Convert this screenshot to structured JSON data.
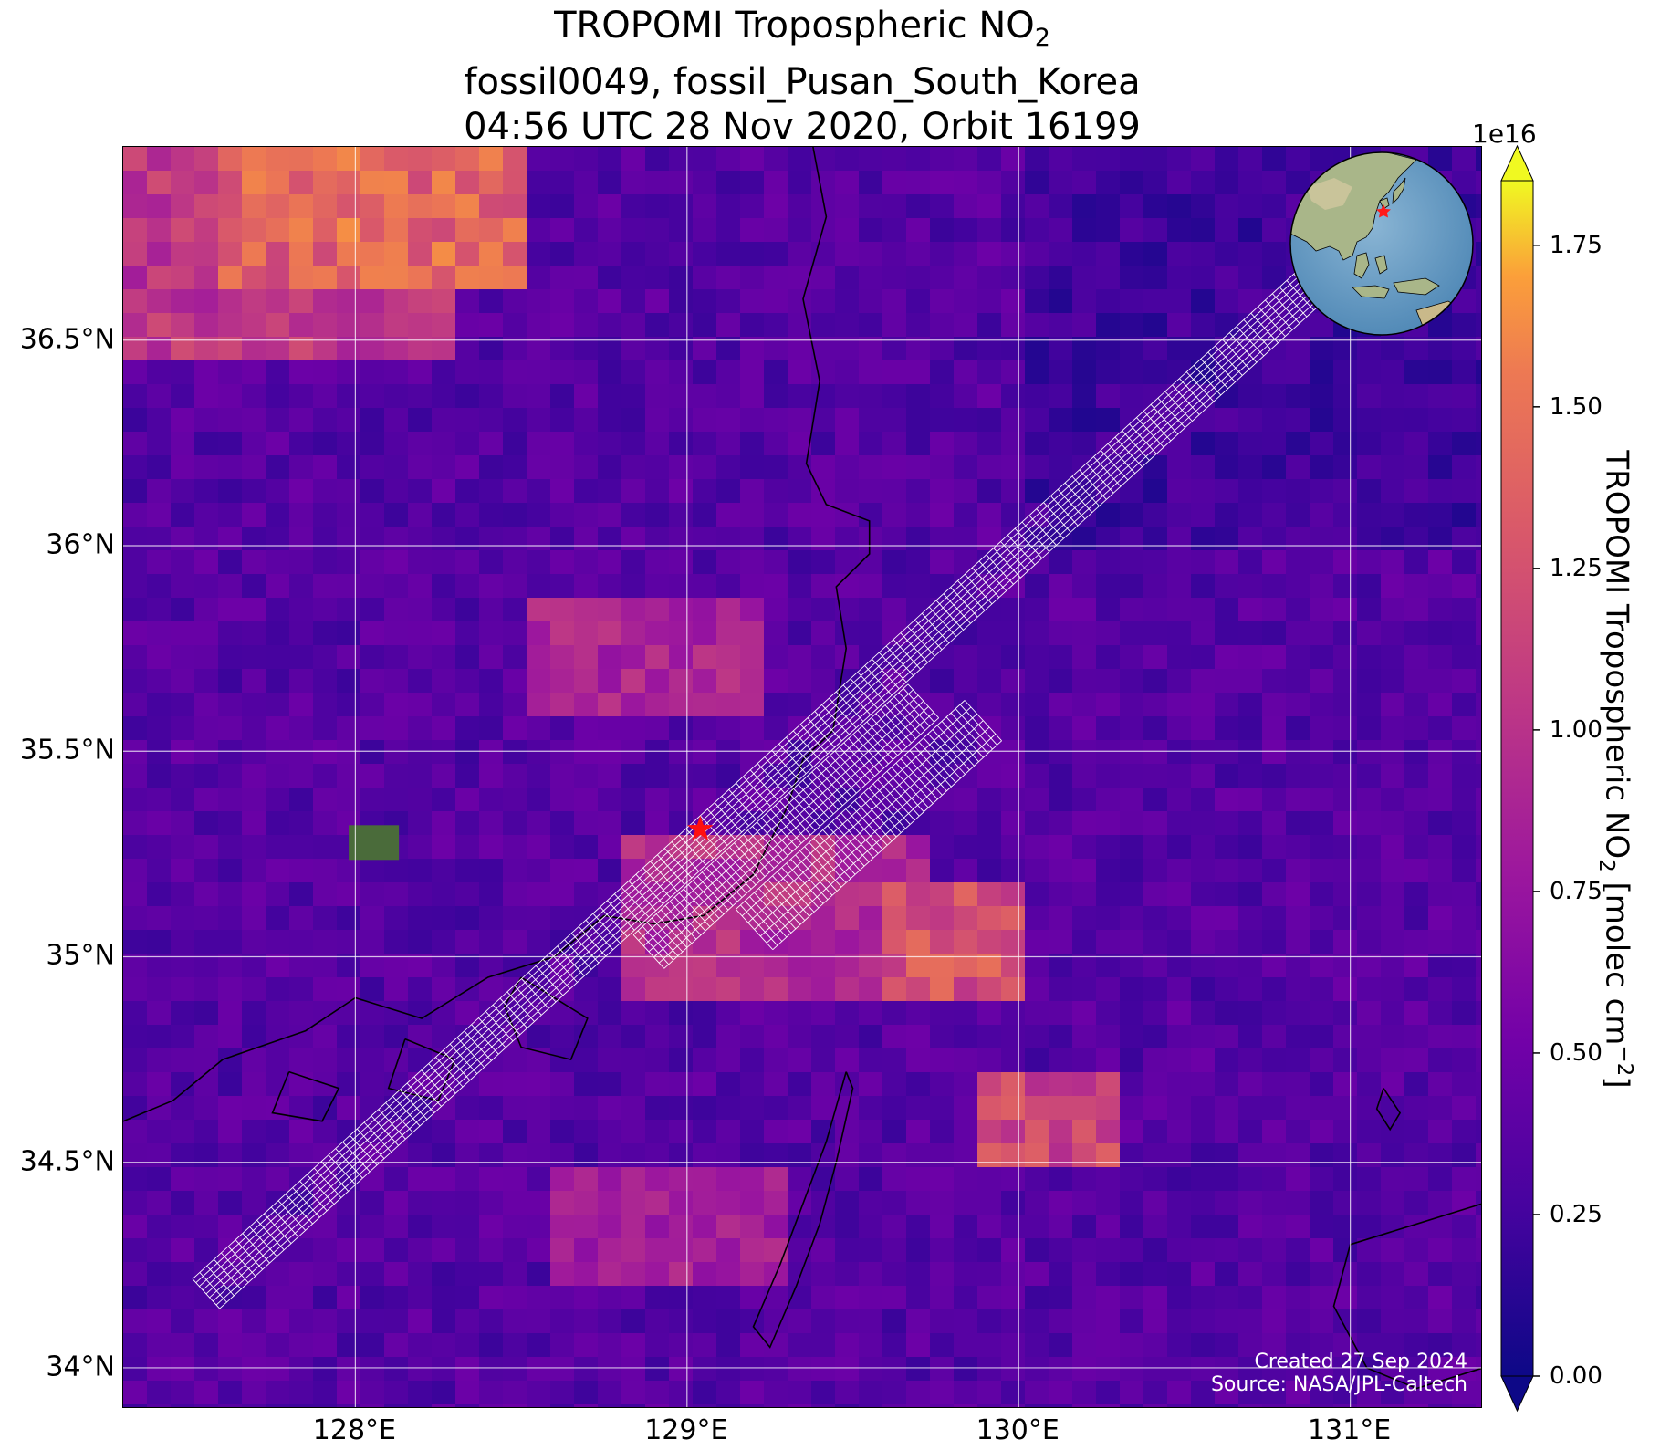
{
  "title": {
    "line1_main": "TROPOMI Tropospheric NO",
    "line1_sub": "2",
    "line2": "fossil0049, fossil_Pusan_South_Korea",
    "line3": "04:56 UTC 28 Nov 2020, Orbit 16199"
  },
  "map": {
    "lon_range": [
      127.3,
      131.4
    ],
    "lat_range": [
      33.9,
      36.97
    ],
    "lat_ticks": [
      {
        "value": 36.5,
        "label": "36.5°N"
      },
      {
        "value": 36.0,
        "label": "36°N"
      },
      {
        "value": 35.5,
        "label": "35.5°N"
      },
      {
        "value": 35.0,
        "label": "35°N"
      },
      {
        "value": 34.5,
        "label": "34.5°N"
      },
      {
        "value": 34.0,
        "label": "34°N"
      }
    ],
    "lon_ticks": [
      {
        "value": 128.0,
        "label": "128°E"
      },
      {
        "value": 129.0,
        "label": "129°E"
      },
      {
        "value": 130.0,
        "label": "130°E"
      },
      {
        "value": 131.0,
        "label": "131°E"
      }
    ],
    "target_marker": {
      "lon": 129.04,
      "lat": 35.31,
      "symbol": "red-star"
    },
    "background_colormap": "plasma",
    "gridlines": true,
    "coastlines": true
  },
  "chart_data": {
    "type": "heatmap",
    "variable": "TROPOMI Tropospheric NO2",
    "units": "molec cm^-2",
    "colorbar_scale": "1e16",
    "colorbar_range": [
      0.0,
      1.85
    ],
    "colorbar_ticks": [
      0.0,
      0.25,
      0.5,
      0.75,
      1.0,
      1.25,
      1.5,
      1.75
    ],
    "colorbar_tick_labels": [
      "0.00",
      "0.25",
      "0.50",
      "0.75",
      "1.00",
      "1.25",
      "1.50",
      "1.75"
    ],
    "colorbar_extend": "both",
    "background_level": 0.35,
    "enhanced_regions": [
      {
        "lon": [
          127.6,
          128.5
        ],
        "lat": [
          36.6,
          36.97
        ],
        "value": 1.5
      },
      {
        "lon": [
          127.3,
          128.3
        ],
        "lat": [
          36.45,
          36.95
        ],
        "value": 1.1
      },
      {
        "lon": [
          128.5,
          129.2
        ],
        "lat": [
          35.6,
          35.9
        ],
        "value": 0.95
      },
      {
        "lon": [
          128.8,
          129.7
        ],
        "lat": [
          34.9,
          35.3
        ],
        "value": 1.0
      },
      {
        "lon": [
          129.6,
          130.0
        ],
        "lat": [
          34.9,
          35.2
        ],
        "value": 1.35
      },
      {
        "lon": [
          129.9,
          130.3
        ],
        "lat": [
          34.5,
          34.7
        ],
        "value": 1.25
      },
      {
        "lon": [
          128.6,
          129.3
        ],
        "lat": [
          34.2,
          34.5
        ],
        "value": 0.9
      }
    ],
    "swath_outline": {
      "description": "white grid of sounding footprints",
      "main_path": [
        {
          "lon": 127.55,
          "lat": 34.18
        },
        {
          "lon": 131.0,
          "lat": 36.72
        }
      ]
    }
  },
  "colorbar": {
    "exponent_label": "1e16",
    "label_main": "TROPOMI Tropospheric NO",
    "label_sub": "2",
    "label_units": " [molec cm",
    "label_sup": "−2",
    "label_close": "]"
  },
  "credits": {
    "created": "Created 27 Sep 2024",
    "source": "Source: NASA/JPL-Caltech"
  }
}
